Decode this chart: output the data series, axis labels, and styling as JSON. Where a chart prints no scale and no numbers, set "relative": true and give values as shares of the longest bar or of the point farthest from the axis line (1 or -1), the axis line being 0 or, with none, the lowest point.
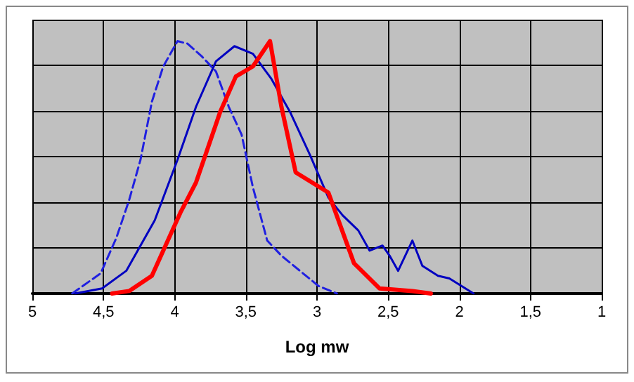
{
  "chart_data": {
    "type": "line",
    "relative": true,
    "xlabel": "Log mw",
    "xlim": [
      5,
      1
    ],
    "xticks": [
      5,
      {
        "value": 4.5,
        "label": "4,5"
      },
      4,
      {
        "value": 3.5,
        "label": "3,5"
      },
      3,
      {
        "value": 2.5,
        "label": "2,5"
      },
      2,
      {
        "value": 1.5,
        "label": "1,5"
      },
      1
    ],
    "grid": true,
    "marker": "none",
    "series": [
      {
        "color": "#2020e0",
        "line_style": "dashed",
        "x": [
          4.72,
          4.52,
          4.41,
          4.32,
          4.24,
          4.16,
          4.08,
          3.98,
          3.91,
          3.81,
          3.71,
          3.62,
          3.53,
          3.45,
          3.35,
          3.25,
          3.12,
          2.99,
          2.86
        ],
        "values": [
          0,
          0.08,
          0.22,
          0.37,
          0.53,
          0.76,
          0.9,
          1,
          0.99,
          0.94,
          0.88,
          0.74,
          0.63,
          0.42,
          0.21,
          0.15,
          0.09,
          0.03,
          0
        ]
      },
      {
        "color": "#0000c0",
        "line_style": "solid",
        "x": [
          4.7,
          4.51,
          4.34,
          4.14,
          3.98,
          3.85,
          3.71,
          3.58,
          3.45,
          3.32,
          3.19,
          3.05,
          2.92,
          2.82,
          2.71,
          2.63,
          2.54,
          2.49,
          2.43,
          2.33,
          2.26,
          2.15,
          2.07,
          1.9
        ],
        "values": [
          0,
          0.02,
          0.09,
          0.29,
          0.53,
          0.74,
          0.92,
          0.98,
          0.95,
          0.85,
          0.72,
          0.55,
          0.38,
          0.31,
          0.25,
          0.17,
          0.19,
          0.15,
          0.09,
          0.21,
          0.11,
          0.07,
          0.06,
          0
        ]
      },
      {
        "color": "#ff0000",
        "line_style": "solid",
        "x": [
          4.44,
          4.32,
          4.16,
          3.96,
          3.85,
          3.68,
          3.57,
          3.45,
          3.33,
          3.25,
          3.15,
          2.92,
          2.74,
          2.56,
          2.33,
          2.2
        ],
        "values": [
          0,
          0.01,
          0.07,
          0.32,
          0.44,
          0.72,
          0.86,
          0.9,
          1,
          0.74,
          0.48,
          0.4,
          0.12,
          0.02,
          0.01,
          0
        ]
      }
    ]
  }
}
